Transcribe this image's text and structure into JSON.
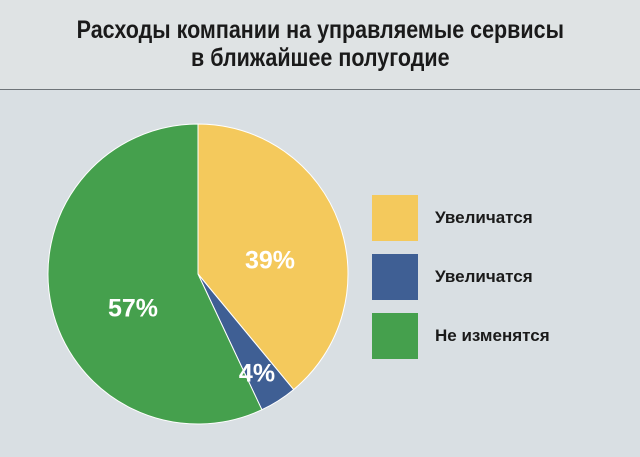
{
  "chart_data": {
    "type": "pie",
    "title_lines": [
      "Расходы компании на управляемые сервисы",
      "в ближайшее полугодие"
    ],
    "slices": [
      {
        "label": "Увеличатся",
        "value": 39,
        "display": "39%",
        "color": "#f4c95c"
      },
      {
        "label": "Увеличатся",
        "value": 4,
        "display": "4%",
        "color": "#3f5f94"
      },
      {
        "label": "Не изменятся",
        "value": 57,
        "display": "57%",
        "color": "#45a04d"
      }
    ],
    "legend_position": "right"
  }
}
